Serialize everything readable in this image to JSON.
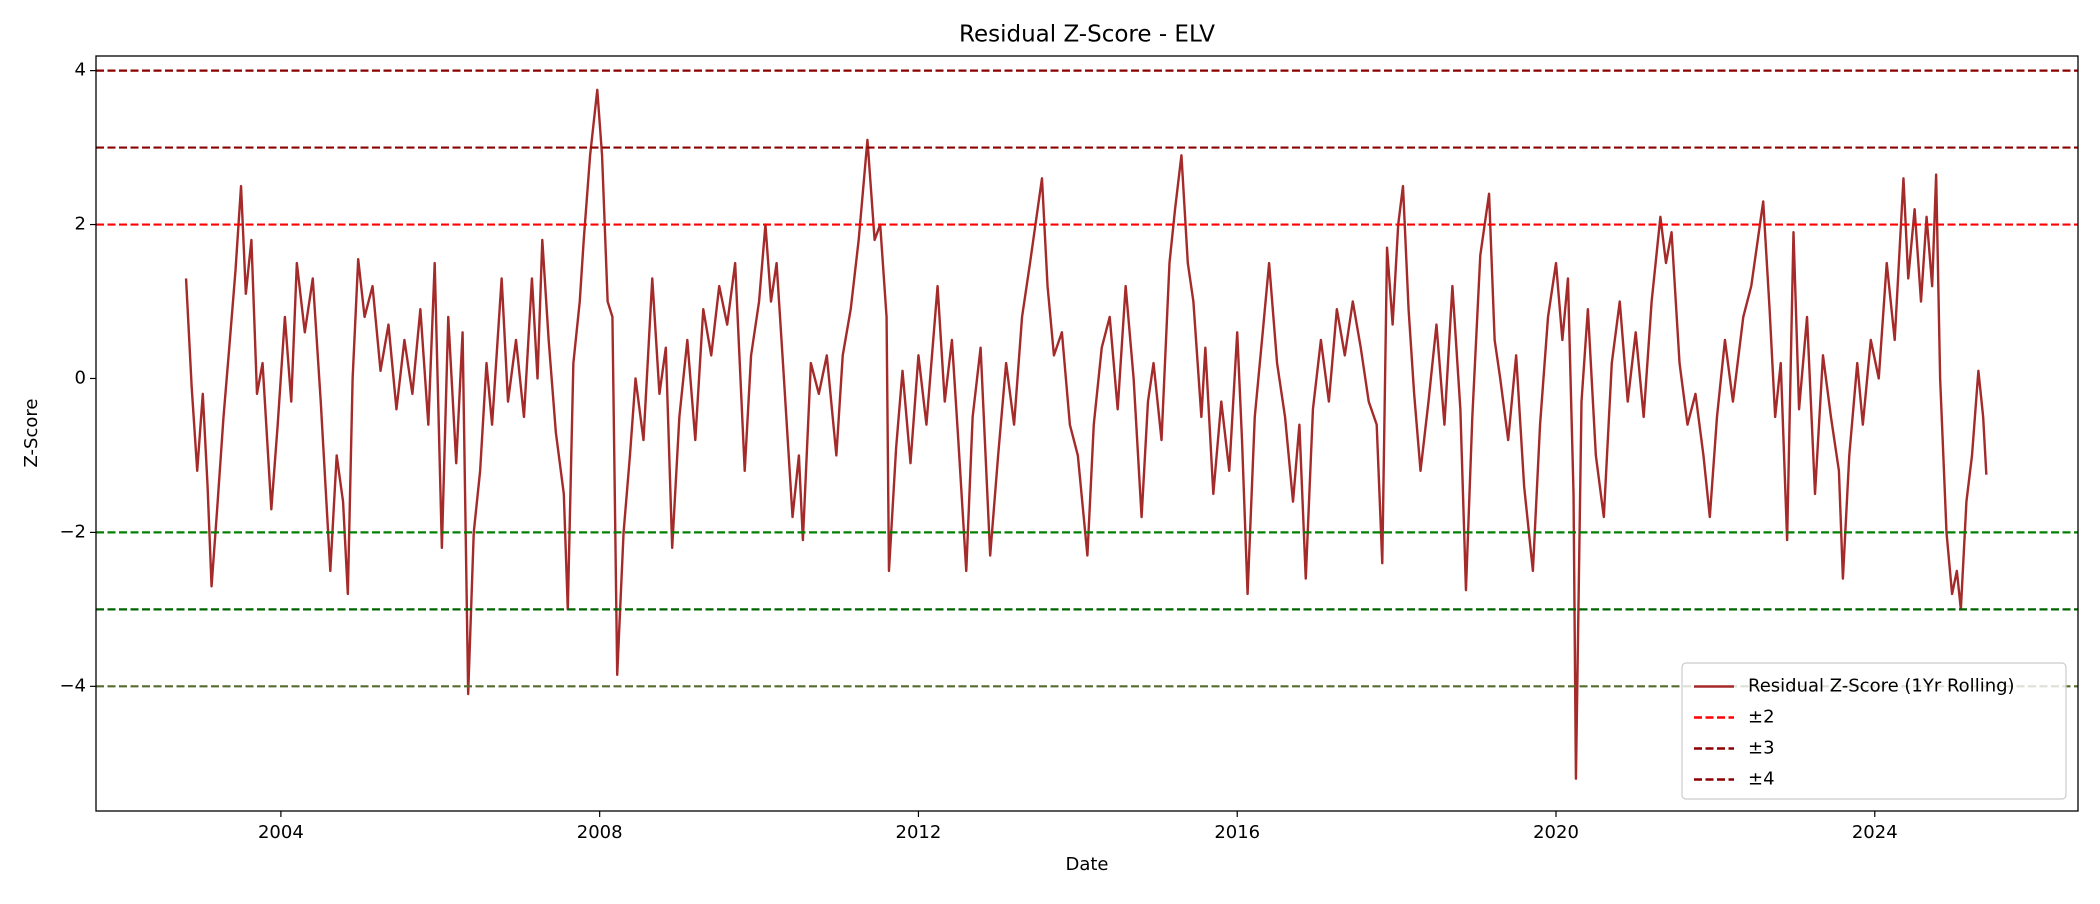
{
  "chart_data": {
    "type": "line",
    "title": "Residual Z-Score - ELV",
    "x_label": "Date",
    "y_label": "Z-Score",
    "xlim": [
      2001.68,
      2026.55
    ],
    "xticks": [
      2004,
      2008,
      2012,
      2016,
      2020,
      2024
    ],
    "ylim": [
      -5.62,
      4.19
    ],
    "yticks": [
      {
        "value": -4,
        "label": "−4"
      },
      {
        "value": -2,
        "label": "−2"
      },
      0,
      2,
      4
    ],
    "legend": "lower right",
    "x": [
      2002.81,
      2002.88,
      2002.95,
      2003.02,
      2003.08,
      2003.13,
      2003.2,
      2003.28,
      2003.36,
      2003.43,
      2003.5,
      2003.56,
      2003.63,
      2003.7,
      2003.77,
      2003.88,
      2003.96,
      2004.05,
      2004.13,
      2004.2,
      2004.3,
      2004.4,
      2004.5,
      2004.62,
      2004.7,
      2004.78,
      2004.84,
      2004.9,
      2004.97,
      2005.05,
      2005.15,
      2005.25,
      2005.35,
      2005.45,
      2005.55,
      2005.65,
      2005.75,
      2005.85,
      2005.93,
      2006.02,
      2006.1,
      2006.2,
      2006.28,
      2006.35,
      2006.42,
      2006.5,
      2006.58,
      2006.65,
      2006.77,
      2006.85,
      2006.95,
      2007.05,
      2007.15,
      2007.22,
      2007.28,
      2007.36,
      2007.45,
      2007.55,
      2007.6,
      2007.67,
      2007.75,
      2007.8,
      2007.88,
      2007.97,
      2008.03,
      2008.1,
      2008.16,
      2008.22,
      2008.3,
      2008.38,
      2008.45,
      2008.55,
      2008.66,
      2008.75,
      2008.83,
      2008.91,
      2009.0,
      2009.1,
      2009.2,
      2009.3,
      2009.4,
      2009.5,
      2009.6,
      2009.7,
      2009.82,
      2009.9,
      2010.0,
      2010.08,
      2010.15,
      2010.22,
      2010.3,
      2010.42,
      2010.5,
      2010.55,
      2010.65,
      2010.75,
      2010.85,
      2010.97,
      2011.05,
      2011.15,
      2011.25,
      2011.36,
      2011.45,
      2011.52,
      2011.6,
      2011.63,
      2011.72,
      2011.8,
      2011.9,
      2012.0,
      2012.1,
      2012.24,
      2012.33,
      2012.42,
      2012.5,
      2012.6,
      2012.68,
      2012.78,
      2012.9,
      2013.0,
      2013.1,
      2013.2,
      2013.3,
      2013.4,
      2013.55,
      2013.62,
      2013.7,
      2013.8,
      2013.9,
      2014.0,
      2014.12,
      2014.2,
      2014.3,
      2014.4,
      2014.5,
      2014.6,
      2014.7,
      2014.8,
      2014.88,
      2014.95,
      2015.05,
      2015.15,
      2015.22,
      2015.3,
      2015.38,
      2015.45,
      2015.55,
      2015.6,
      2015.7,
      2015.8,
      2015.9,
      2016.0,
      2016.06,
      2016.13,
      2016.22,
      2016.32,
      2016.4,
      2016.5,
      2016.6,
      2016.7,
      2016.78,
      2016.86,
      2016.95,
      2017.05,
      2017.15,
      2017.25,
      2017.35,
      2017.45,
      2017.55,
      2017.65,
      2017.75,
      2017.82,
      2017.88,
      2017.95,
      2018.02,
      2018.08,
      2018.15,
      2018.22,
      2018.3,
      2018.4,
      2018.5,
      2018.6,
      2018.7,
      2018.8,
      2018.87,
      2018.95,
      2019.05,
      2019.16,
      2019.23,
      2019.3,
      2019.4,
      2019.5,
      2019.6,
      2019.71,
      2019.8,
      2019.9,
      2020.0,
      2020.08,
      2020.15,
      2020.22,
      2020.25,
      2020.32,
      2020.4,
      2020.5,
      2020.6,
      2020.7,
      2020.8,
      2020.9,
      2021.0,
      2021.1,
      2021.2,
      2021.31,
      2021.38,
      2021.45,
      2021.55,
      2021.65,
      2021.75,
      2021.85,
      2021.93,
      2022.02,
      2022.12,
      2022.22,
      2022.35,
      2022.45,
      2022.6,
      2022.68,
      2022.75,
      2022.82,
      2022.9,
      2022.98,
      2023.05,
      2023.15,
      2023.25,
      2023.35,
      2023.45,
      2023.55,
      2023.6,
      2023.68,
      2023.78,
      2023.85,
      2023.95,
      2024.05,
      2024.15,
      2024.25,
      2024.36,
      2024.42,
      2024.5,
      2024.58,
      2024.65,
      2024.72,
      2024.77,
      2024.82,
      2024.9,
      2024.97,
      2025.03,
      2025.08,
      2025.15,
      2025.22,
      2025.3,
      2025.36,
      2025.4
    ],
    "series": [
      {
        "name": "Residual Z-Score (1Yr Rolling)",
        "color": "#a52a2a",
        "values": [
          1.3,
          -0.1,
          -1.2,
          -0.2,
          -1.4,
          -2.7,
          -1.7,
          -0.5,
          0.5,
          1.4,
          2.5,
          1.1,
          1.8,
          -0.2,
          0.2,
          -1.7,
          -0.6,
          0.8,
          -0.3,
          1.5,
          0.6,
          1.3,
          -0.3,
          -2.5,
          -1.0,
          -1.6,
          -2.8,
          0.0,
          1.55,
          0.8,
          1.2,
          0.1,
          0.7,
          -0.4,
          0.5,
          -0.2,
          0.9,
          -0.6,
          1.5,
          -2.2,
          0.8,
          -1.1,
          0.6,
          -4.1,
          -2.0,
          -1.2,
          0.2,
          -0.6,
          1.3,
          -0.3,
          0.5,
          -0.5,
          1.3,
          0.0,
          1.8,
          0.5,
          -0.7,
          -1.5,
          -3.0,
          0.2,
          1.0,
          1.8,
          2.9,
          3.75,
          2.9,
          1.0,
          0.8,
          -3.85,
          -2.0,
          -1.0,
          0.0,
          -0.8,
          1.3,
          -0.2,
          0.4,
          -2.2,
          -0.5,
          0.5,
          -0.8,
          0.9,
          0.3,
          1.2,
          0.7,
          1.5,
          -1.2,
          0.3,
          1.0,
          2.0,
          1.0,
          1.5,
          0.2,
          -1.8,
          -1.0,
          -2.1,
          0.2,
          -0.2,
          0.3,
          -1.0,
          0.3,
          0.9,
          1.8,
          3.1,
          1.8,
          2.0,
          0.8,
          -2.5,
          -0.9,
          0.1,
          -1.1,
          0.3,
          -0.6,
          1.2,
          -0.3,
          0.5,
          -0.8,
          -2.5,
          -0.5,
          0.4,
          -2.3,
          -1.0,
          0.2,
          -0.6,
          0.8,
          1.5,
          2.6,
          1.2,
          0.3,
          0.6,
          -0.6,
          -1.0,
          -2.3,
          -0.6,
          0.4,
          0.8,
          -0.4,
          1.2,
          0.0,
          -1.8,
          -0.3,
          0.2,
          -0.8,
          1.5,
          2.2,
          2.9,
          1.5,
          1.0,
          -0.5,
          0.4,
          -1.5,
          -0.3,
          -1.2,
          0.6,
          -0.8,
          -2.8,
          -0.5,
          0.6,
          1.5,
          0.2,
          -0.5,
          -1.6,
          -0.6,
          -2.6,
          -0.4,
          0.5,
          -0.3,
          0.9,
          0.3,
          1.0,
          0.4,
          -0.3,
          -0.6,
          -2.4,
          1.7,
          0.7,
          2.0,
          2.5,
          0.9,
          -0.2,
          -1.2,
          -0.3,
          0.7,
          -0.6,
          1.2,
          -0.4,
          -2.75,
          -0.5,
          1.6,
          2.4,
          0.5,
          0.0,
          -0.8,
          0.3,
          -1.4,
          -2.5,
          -0.6,
          0.8,
          1.5,
          0.5,
          1.3,
          -1.5,
          -5.2,
          -0.3,
          0.9,
          -1.0,
          -1.8,
          0.2,
          1.0,
          -0.3,
          0.6,
          -0.5,
          1.0,
          2.1,
          1.5,
          1.9,
          0.2,
          -0.6,
          -0.2,
          -1.0,
          -1.8,
          -0.5,
          0.5,
          -0.3,
          0.8,
          1.2,
          2.3,
          0.9,
          -0.5,
          0.2,
          -2.1,
          1.9,
          -0.4,
          0.8,
          -1.5,
          0.3,
          -0.5,
          -1.2,
          -2.6,
          -1.0,
          0.2,
          -0.6,
          0.5,
          0.0,
          1.5,
          0.5,
          2.6,
          1.3,
          2.2,
          1.0,
          2.1,
          1.2,
          2.65,
          0.0,
          -2.0,
          -2.8,
          -2.5,
          -3.0,
          -1.6,
          -1.0,
          0.1,
          -0.5,
          -1.25
        ]
      }
    ],
    "thresholds": [
      {
        "name": "±2",
        "levels": [
          2,
          -2
        ],
        "colors": [
          "#ff0000",
          "#008000"
        ]
      },
      {
        "name": "±3",
        "levels": [
          3,
          -3
        ],
        "colors": [
          "#8b0000",
          "#006400"
        ]
      },
      {
        "name": "±4",
        "levels": [
          4,
          -4
        ],
        "colors": [
          "#8b0000",
          "#556b2f"
        ]
      }
    ]
  }
}
